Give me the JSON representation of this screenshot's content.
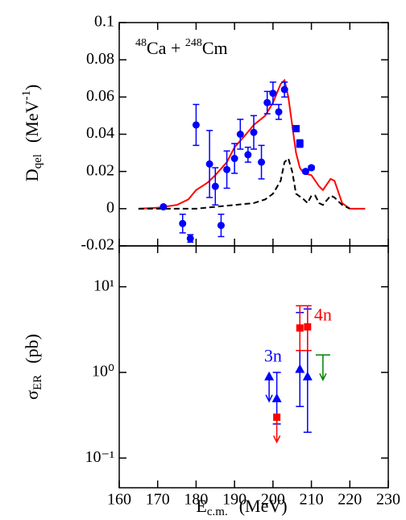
{
  "chart_data": [
    {
      "type": "line",
      "annotation": [
        "48",
        "Ca + ",
        "248",
        "Cm"
      ],
      "ylabel": [
        "D",
        "qel",
        "(MeV",
        "-1",
        ")"
      ],
      "xlim": [
        160,
        230
      ],
      "xticks": [
        160,
        170,
        180,
        190,
        200,
        210,
        220,
        230
      ],
      "xtick_labels": false,
      "ylim": [
        -0.02,
        0.1
      ],
      "yticks": [
        -0.02,
        0,
        0.02,
        0.04,
        0.06,
        0.08,
        0.1
      ],
      "series": [
        {
          "style": "line",
          "color": "#ff0000",
          "x": [
            165,
            170,
            175,
            178,
            180,
            183,
            185,
            188,
            190,
            193,
            195,
            198,
            200,
            202,
            203,
            204,
            205,
            206,
            207,
            208,
            210,
            212,
            213,
            215,
            216,
            218,
            220,
            224
          ],
          "values": [
            0,
            0.0005,
            0.002,
            0.005,
            0.01,
            0.014,
            0.018,
            0.025,
            0.033,
            0.04,
            0.045,
            0.05,
            0.057,
            0.067,
            0.069,
            0.06,
            0.045,
            0.03,
            0.022,
            0.019,
            0.018,
            0.012,
            0.01,
            0.016,
            0.015,
            0.003,
            0,
            0
          ]
        },
        {
          "style": "dashed",
          "color": "#000000",
          "x": [
            165,
            180,
            190,
            195,
            198,
            200,
            202,
            203,
            204,
            205,
            206,
            208,
            209,
            210,
            211,
            212,
            213,
            215,
            216,
            218,
            220
          ],
          "values": [
            0,
            0,
            0.002,
            0.003,
            0.005,
            0.008,
            0.015,
            0.025,
            0.027,
            0.02,
            0.008,
            0.005,
            0.003,
            0.007,
            0.007,
            0.003,
            0.002,
            0.007,
            0.006,
            0.002,
            0
          ]
        },
        {
          "style": "points",
          "marker": "circle",
          "color": "#0000ff",
          "x": [
            171.5,
            176.5,
            178.5,
            180,
            183.5,
            185,
            186.5,
            188,
            190,
            191.5,
            193.5,
            195,
            197,
            198.5,
            200,
            201.5,
            203,
            208.5,
            210
          ],
          "values": [
            0.001,
            -0.008,
            -0.016,
            0.045,
            0.024,
            0.012,
            -0.009,
            0.021,
            0.027,
            0.04,
            0.029,
            0.041,
            0.025,
            0.057,
            0.062,
            0.052,
            0.064,
            0.02,
            0.022
          ],
          "errors": [
            0,
            0.005,
            0.002,
            0.011,
            0.018,
            0.01,
            0.006,
            0.01,
            0.008,
            0.008,
            0.004,
            0.009,
            0.009,
            0.006,
            0.006,
            0.004,
            0.004,
            0.001,
            0.001
          ]
        },
        {
          "style": "points",
          "marker": "square",
          "color": "#0000ff",
          "x": [
            206,
            207
          ],
          "values": [
            0.043,
            0.035
          ],
          "errors": [
            0.001,
            0.002
          ]
        }
      ]
    },
    {
      "type": "scatter",
      "xlabel": [
        "E",
        "c.m.",
        "(MeV)"
      ],
      "ylabel": [
        "σ",
        "ER",
        "(pb)"
      ],
      "xlim": [
        160,
        230
      ],
      "xticks": [
        160,
        170,
        180,
        190,
        200,
        210,
        220,
        230
      ],
      "ylim": [
        0.045,
        30
      ],
      "log": true,
      "yticks": [
        {
          "value": 0.1,
          "label": "10⁻¹"
        },
        {
          "value": 1,
          "label": "10⁰"
        },
        {
          "value": 10,
          "label": "10¹"
        }
      ],
      "annotations": [
        {
          "text": "3n",
          "color": "#0000ff"
        },
        {
          "text": "4n",
          "color": "#ff0000"
        }
      ],
      "series": [
        {
          "style": "points",
          "marker": "triangle",
          "color": "#0000ff",
          "x": [
            199,
            201,
            207,
            209
          ],
          "values": [
            0.9,
            0.5,
            1.1,
            0.9
          ],
          "lower": [
            null,
            0.25,
            0.4,
            0.2
          ],
          "upper": [
            null,
            1.0,
            5,
            5.5
          ],
          "limits": [
            true,
            false,
            false,
            false
          ]
        },
        {
          "style": "points",
          "marker": "square",
          "color": "#ff0000",
          "x": [
            201,
            207,
            209
          ],
          "values": [
            0.3,
            3.3,
            3.4
          ],
          "lower": [
            null,
            1.8,
            1.8
          ],
          "upper": [
            null,
            6,
            6
          ],
          "limits": [
            true,
            false,
            false
          ]
        },
        {
          "style": "points",
          "marker": "bar",
          "color": "#008000",
          "x": [
            213
          ],
          "values": [
            1.6
          ],
          "lower": [
            null
          ],
          "upper": [
            null
          ],
          "limits": [
            true
          ]
        }
      ]
    }
  ]
}
